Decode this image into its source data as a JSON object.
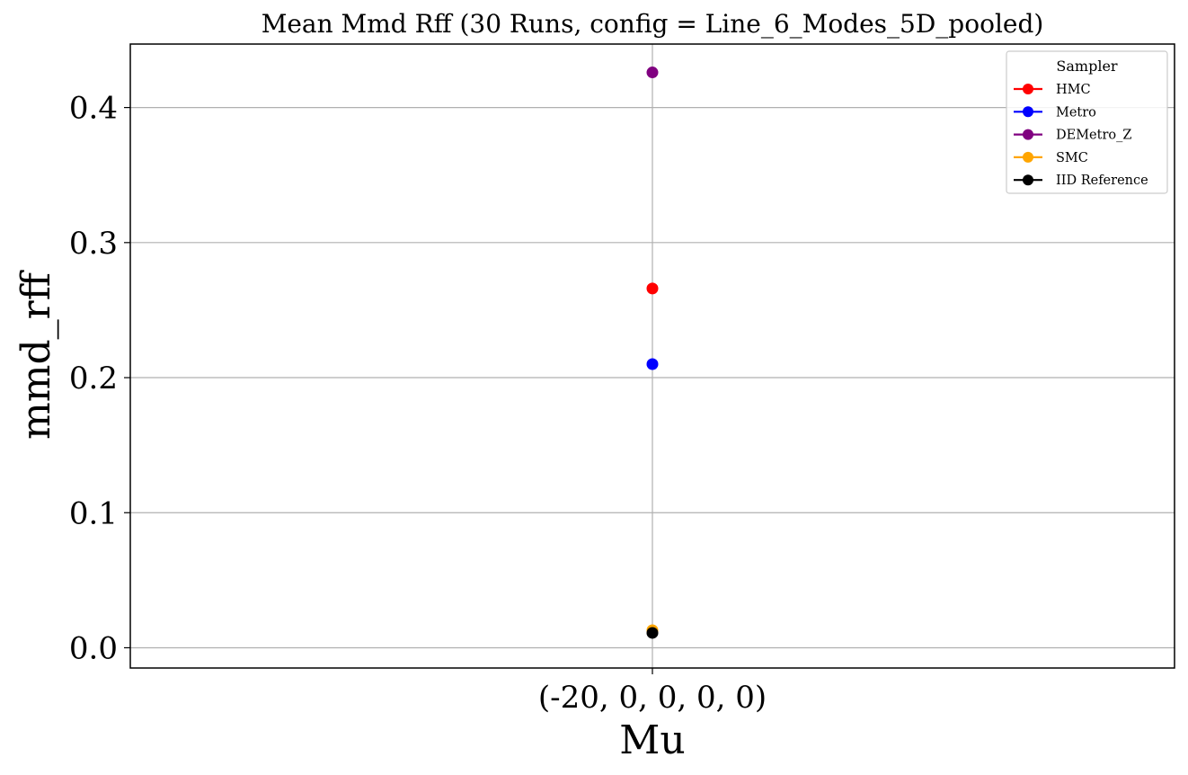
{
  "chart_data": {
    "type": "scatter",
    "title": "Mean Mmd Rff (30 Runs, config = Line_6_Modes_5D_pooled)",
    "xlabel": "Mu",
    "ylabel": "mmd_rff",
    "categories": [
      "(-20, 0, 0, 0, 0)"
    ],
    "ylim": [
      -0.015,
      0.447
    ],
    "yticks": [
      0.0,
      0.1,
      0.2,
      0.3,
      0.4
    ],
    "ytick_labels": [
      "0.0",
      "0.1",
      "0.2",
      "0.3",
      "0.4"
    ],
    "grid": true,
    "legend": {
      "title": "Sampler",
      "placement": "top-right"
    },
    "series": [
      {
        "name": "HMC",
        "color": "#ff0000",
        "values": [
          0.266
        ]
      },
      {
        "name": "Metro",
        "color": "#0000ff",
        "values": [
          0.21
        ]
      },
      {
        "name": "DEMetro_Z",
        "color": "#800080",
        "values": [
          0.426
        ]
      },
      {
        "name": "SMC",
        "color": "#ffa500",
        "values": [
          0.013
        ]
      },
      {
        "name": "IID Reference",
        "color": "#000000",
        "values": [
          0.011
        ]
      }
    ]
  }
}
